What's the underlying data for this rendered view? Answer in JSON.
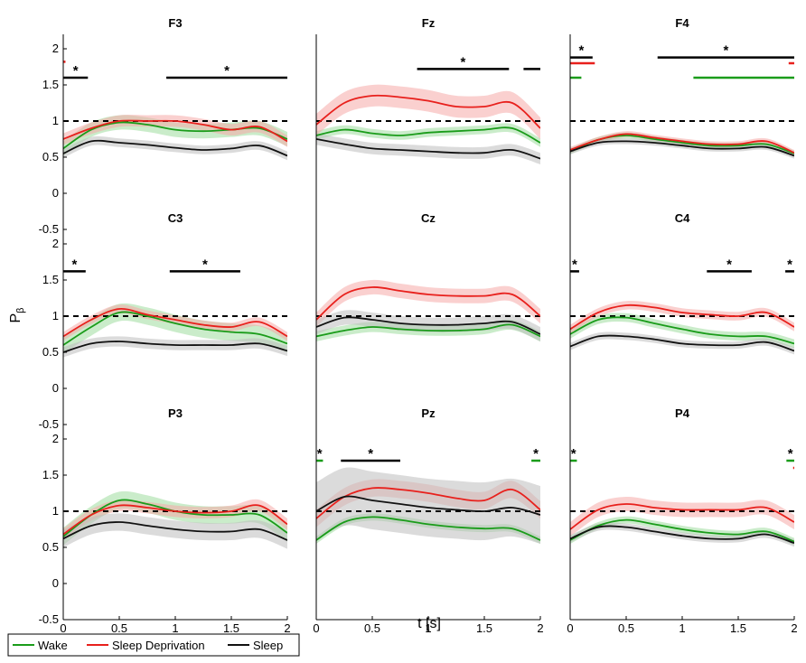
{
  "chart_data": {
    "type": "line",
    "xlabel": "t [s]",
    "ylabel": "P",
    "ylabel_subscript": "β",
    "xlim": [
      0,
      2
    ],
    "ylim": [
      -0.5,
      2.2
    ],
    "xticks": [
      "0",
      "0.5",
      "1",
      "1.5",
      "2"
    ],
    "yticks": [
      "-0.5",
      "0",
      "0.5",
      "1",
      "1.5",
      "2"
    ],
    "reference_line": 1,
    "legend": [
      {
        "name": "Wake",
        "color": "#1a9c1a"
      },
      {
        "name": "Sleep Deprivation",
        "color": "#e8201c"
      },
      {
        "name": "Sleep",
        "color": "#111111"
      }
    ],
    "panels": [
      {
        "title": "F3",
        "sig_bars": [
          {
            "x0": 0.0,
            "x1": 0.22,
            "y": 1.6,
            "color": "#000",
            "star": true
          },
          {
            "x0": 0.92,
            "x1": 2.0,
            "y": 1.6,
            "color": "#000",
            "star": true
          },
          {
            "x0": 0.0,
            "x1": 0.02,
            "y": 1.82,
            "color": "#e8201c",
            "star": false
          }
        ],
        "series": [
          {
            "name": "Wake",
            "color": "#1a9c1a",
            "x": [
              0,
              0.25,
              0.5,
              0.75,
              1,
              1.25,
              1.5,
              1.75,
              2
            ],
            "y": [
              0.62,
              0.88,
              0.98,
              0.95,
              0.88,
              0.86,
              0.88,
              0.9,
              0.75
            ],
            "band": 0.1
          },
          {
            "name": "Sleep Deprivation",
            "color": "#e8201c",
            "x": [
              0,
              0.25,
              0.5,
              0.75,
              1,
              1.25,
              1.5,
              1.75,
              2
            ],
            "y": [
              0.75,
              0.9,
              1.0,
              1.0,
              1.0,
              0.95,
              0.88,
              0.92,
              0.72
            ],
            "band": 0.08
          },
          {
            "name": "Sleep",
            "color": "#111111",
            "x": [
              0,
              0.25,
              0.5,
              0.75,
              1,
              1.25,
              1.5,
              1.75,
              2
            ],
            "y": [
              0.55,
              0.72,
              0.7,
              0.67,
              0.63,
              0.6,
              0.62,
              0.66,
              0.52
            ],
            "band": 0.06
          }
        ]
      },
      {
        "title": "Fz",
        "sig_bars": [
          {
            "x0": 0.9,
            "x1": 1.72,
            "y": 1.72,
            "color": "#000",
            "star": true
          },
          {
            "x0": 1.85,
            "x1": 2.0,
            "y": 1.72,
            "color": "#000",
            "star": false
          }
        ],
        "series": [
          {
            "name": "Wake",
            "color": "#1a9c1a",
            "x": [
              0,
              0.25,
              0.5,
              0.75,
              1,
              1.25,
              1.5,
              1.75,
              2
            ],
            "y": [
              0.8,
              0.88,
              0.83,
              0.8,
              0.84,
              0.86,
              0.88,
              0.9,
              0.7
            ],
            "band": 0.06
          },
          {
            "name": "Sleep Deprivation",
            "color": "#e8201c",
            "x": [
              0,
              0.25,
              0.5,
              0.75,
              1,
              1.25,
              1.5,
              1.75,
              2
            ],
            "y": [
              0.95,
              1.25,
              1.35,
              1.33,
              1.28,
              1.2,
              1.2,
              1.25,
              0.9
            ],
            "band": 0.15
          },
          {
            "name": "Sleep",
            "color": "#111111",
            "x": [
              0,
              0.25,
              0.5,
              0.75,
              1,
              1.25,
              1.5,
              1.75,
              2
            ],
            "y": [
              0.75,
              0.68,
              0.62,
              0.6,
              0.58,
              0.56,
              0.56,
              0.6,
              0.48
            ],
            "band": 0.08
          }
        ]
      },
      {
        "title": "F4",
        "sig_bars": [
          {
            "x0": 0.0,
            "x1": 0.2,
            "y": 1.88,
            "color": "#000",
            "star": true
          },
          {
            "x0": 0.0,
            "x1": 0.22,
            "y": 1.8,
            "color": "#e8201c",
            "star": false
          },
          {
            "x0": 0.0,
            "x1": 0.1,
            "y": 1.6,
            "color": "#1a9c1a",
            "star": false
          },
          {
            "x0": 0.78,
            "x1": 2.0,
            "y": 1.88,
            "color": "#000",
            "star": true
          },
          {
            "x0": 1.95,
            "x1": 2.0,
            "y": 1.8,
            "color": "#e8201c",
            "star": false
          },
          {
            "x0": 1.1,
            "x1": 2.0,
            "y": 1.6,
            "color": "#1a9c1a",
            "star": false
          }
        ],
        "series": [
          {
            "name": "Wake",
            "color": "#1a9c1a",
            "x": [
              0,
              0.25,
              0.5,
              0.75,
              1,
              1.25,
              1.5,
              1.75,
              2
            ],
            "y": [
              0.58,
              0.74,
              0.8,
              0.75,
              0.7,
              0.66,
              0.66,
              0.68,
              0.55
            ],
            "band": 0.04
          },
          {
            "name": "Sleep Deprivation",
            "color": "#e8201c",
            "x": [
              0,
              0.25,
              0.5,
              0.75,
              1,
              1.25,
              1.5,
              1.75,
              2
            ],
            "y": [
              0.6,
              0.74,
              0.82,
              0.77,
              0.72,
              0.68,
              0.68,
              0.72,
              0.56
            ],
            "band": 0.04
          },
          {
            "name": "Sleep",
            "color": "#111111",
            "x": [
              0,
              0.25,
              0.5,
              0.75,
              1,
              1.25,
              1.5,
              1.75,
              2
            ],
            "y": [
              0.58,
              0.7,
              0.72,
              0.7,
              0.66,
              0.62,
              0.62,
              0.64,
              0.52
            ],
            "band": 0.04
          }
        ]
      },
      {
        "title": "C3",
        "sig_bars": [
          {
            "x0": 0.0,
            "x1": 0.2,
            "y": 1.62,
            "color": "#000",
            "star": true
          },
          {
            "x0": 0.95,
            "x1": 1.58,
            "y": 1.62,
            "color": "#000",
            "star": true
          }
        ],
        "series": [
          {
            "name": "Wake",
            "color": "#1a9c1a",
            "x": [
              0,
              0.25,
              0.5,
              0.75,
              1,
              1.25,
              1.5,
              1.75,
              2
            ],
            "y": [
              0.6,
              0.85,
              1.05,
              1.0,
              0.9,
              0.82,
              0.78,
              0.75,
              0.62
            ],
            "band": 0.12
          },
          {
            "name": "Sleep Deprivation",
            "color": "#e8201c",
            "x": [
              0,
              0.25,
              0.5,
              0.75,
              1,
              1.25,
              1.5,
              1.75,
              2
            ],
            "y": [
              0.72,
              0.95,
              1.1,
              1.02,
              0.95,
              0.88,
              0.85,
              0.92,
              0.72
            ],
            "band": 0.06
          },
          {
            "name": "Sleep",
            "color": "#111111",
            "x": [
              0,
              0.25,
              0.5,
              0.75,
              1,
              1.25,
              1.5,
              1.75,
              2
            ],
            "y": [
              0.5,
              0.62,
              0.65,
              0.62,
              0.6,
              0.6,
              0.6,
              0.62,
              0.52
            ],
            "band": 0.07
          }
        ]
      },
      {
        "title": "Cz",
        "sig_bars": [],
        "series": [
          {
            "name": "Wake",
            "color": "#1a9c1a",
            "x": [
              0,
              0.25,
              0.5,
              0.75,
              1,
              1.25,
              1.5,
              1.75,
              2
            ],
            "y": [
              0.72,
              0.8,
              0.85,
              0.82,
              0.8,
              0.8,
              0.82,
              0.88,
              0.72
            ],
            "band": 0.07
          },
          {
            "name": "Sleep Deprivation",
            "color": "#e8201c",
            "x": [
              0,
              0.25,
              0.5,
              0.75,
              1,
              1.25,
              1.5,
              1.75,
              2
            ],
            "y": [
              0.95,
              1.3,
              1.4,
              1.35,
              1.3,
              1.28,
              1.28,
              1.3,
              1.0
            ],
            "band": 0.1
          },
          {
            "name": "Sleep",
            "color": "#111111",
            "x": [
              0,
              0.25,
              0.5,
              0.75,
              1,
              1.25,
              1.5,
              1.75,
              2
            ],
            "y": [
              0.85,
              0.98,
              0.95,
              0.9,
              0.88,
              0.88,
              0.9,
              0.92,
              0.75
            ],
            "band": 0.1
          }
        ]
      },
      {
        "title": "C4",
        "sig_bars": [
          {
            "x0": 0.0,
            "x1": 0.08,
            "y": 1.62,
            "color": "#000",
            "star": true
          },
          {
            "x0": 1.22,
            "x1": 1.62,
            "y": 1.62,
            "color": "#000",
            "star": true
          },
          {
            "x0": 1.92,
            "x1": 2.0,
            "y": 1.62,
            "color": "#000",
            "star": true
          }
        ],
        "series": [
          {
            "name": "Wake",
            "color": "#1a9c1a",
            "x": [
              0,
              0.25,
              0.5,
              0.75,
              1,
              1.25,
              1.5,
              1.75,
              2
            ],
            "y": [
              0.75,
              0.95,
              0.98,
              0.9,
              0.82,
              0.75,
              0.72,
              0.72,
              0.62
            ],
            "band": 0.06
          },
          {
            "name": "Sleep Deprivation",
            "color": "#e8201c",
            "x": [
              0,
              0.25,
              0.5,
              0.75,
              1,
              1.25,
              1.5,
              1.75,
              2
            ],
            "y": [
              0.82,
              1.05,
              1.15,
              1.12,
              1.05,
              1.02,
              1.0,
              1.05,
              0.85
            ],
            "band": 0.06
          },
          {
            "name": "Sleep",
            "color": "#111111",
            "x": [
              0,
              0.25,
              0.5,
              0.75,
              1,
              1.25,
              1.5,
              1.75,
              2
            ],
            "y": [
              0.58,
              0.72,
              0.72,
              0.68,
              0.62,
              0.6,
              0.6,
              0.64,
              0.52
            ],
            "band": 0.05
          }
        ]
      },
      {
        "title": "P3",
        "sig_bars": [],
        "series": [
          {
            "name": "Wake",
            "color": "#1a9c1a",
            "x": [
              0,
              0.25,
              0.5,
              0.75,
              1,
              1.25,
              1.5,
              1.75,
              2
            ],
            "y": [
              0.65,
              0.95,
              1.15,
              1.1,
              1.0,
              0.95,
              0.95,
              0.95,
              0.7
            ],
            "band": 0.12
          },
          {
            "name": "Sleep Deprivation",
            "color": "#e8201c",
            "x": [
              0,
              0.25,
              0.5,
              0.75,
              1,
              1.25,
              1.5,
              1.75,
              2
            ],
            "y": [
              0.68,
              0.95,
              1.08,
              1.05,
              1.0,
              0.98,
              1.0,
              1.08,
              0.82
            ],
            "band": 0.08
          },
          {
            "name": "Sleep",
            "color": "#111111",
            "x": [
              0,
              0.25,
              0.5,
              0.75,
              1,
              1.25,
              1.5,
              1.75,
              2
            ],
            "y": [
              0.62,
              0.8,
              0.85,
              0.8,
              0.75,
              0.72,
              0.72,
              0.75,
              0.6
            ],
            "band": 0.12
          }
        ]
      },
      {
        "title": "Pz",
        "sig_bars": [
          {
            "x0": 0.0,
            "x1": 0.06,
            "y": 1.7,
            "color": "#1a9c1a",
            "star": true
          },
          {
            "x0": 0.22,
            "x1": 0.75,
            "y": 1.7,
            "color": "#000",
            "star": true
          },
          {
            "x0": 1.92,
            "x1": 2.0,
            "y": 1.7,
            "color": "#1a9c1a",
            "star": true
          }
        ],
        "series": [
          {
            "name": "Wake",
            "color": "#1a9c1a",
            "x": [
              0,
              0.25,
              0.5,
              0.75,
              1,
              1.25,
              1.5,
              1.75,
              2
            ],
            "y": [
              0.6,
              0.85,
              0.92,
              0.88,
              0.82,
              0.78,
              0.76,
              0.76,
              0.6
            ],
            "band": 0.05
          },
          {
            "name": "Sleep Deprivation",
            "color": "#e8201c",
            "x": [
              0,
              0.25,
              0.5,
              0.75,
              1,
              1.25,
              1.5,
              1.75,
              2
            ],
            "y": [
              0.9,
              1.2,
              1.32,
              1.3,
              1.25,
              1.18,
              1.15,
              1.3,
              1.02
            ],
            "band": 0.12
          },
          {
            "name": "Sleep",
            "color": "#111111",
            "x": [
              0,
              0.25,
              0.5,
              0.75,
              1,
              1.25,
              1.5,
              1.75,
              2
            ],
            "y": [
              1.0,
              1.2,
              1.15,
              1.1,
              1.05,
              1.02,
              1.0,
              1.05,
              0.95
            ],
            "band": 0.4
          }
        ]
      },
      {
        "title": "P4",
        "sig_bars": [
          {
            "x0": 0.0,
            "x1": 0.06,
            "y": 1.7,
            "color": "#1a9c1a",
            "star": true
          },
          {
            "x0": 1.93,
            "x1": 2.0,
            "y": 1.7,
            "color": "#1a9c1a",
            "star": true
          },
          {
            "x0": 1.99,
            "x1": 2.0,
            "y": 1.6,
            "color": "#e8201c",
            "star": false
          }
        ],
        "series": [
          {
            "name": "Wake",
            "color": "#1a9c1a",
            "x": [
              0,
              0.25,
              0.5,
              0.75,
              1,
              1.25,
              1.5,
              1.75,
              2
            ],
            "y": [
              0.6,
              0.8,
              0.88,
              0.82,
              0.75,
              0.7,
              0.68,
              0.72,
              0.58
            ],
            "band": 0.05
          },
          {
            "name": "Sleep Deprivation",
            "color": "#e8201c",
            "x": [
              0,
              0.25,
              0.5,
              0.75,
              1,
              1.25,
              1.5,
              1.75,
              2
            ],
            "y": [
              0.75,
              1.02,
              1.1,
              1.05,
              1.02,
              1.02,
              1.02,
              1.05,
              0.85
            ],
            "band": 0.1
          },
          {
            "name": "Sleep",
            "color": "#111111",
            "x": [
              0,
              0.25,
              0.5,
              0.75,
              1,
              1.25,
              1.5,
              1.75,
              2
            ],
            "y": [
              0.62,
              0.78,
              0.78,
              0.72,
              0.66,
              0.62,
              0.62,
              0.68,
              0.56
            ],
            "band": 0.05
          }
        ]
      }
    ]
  }
}
